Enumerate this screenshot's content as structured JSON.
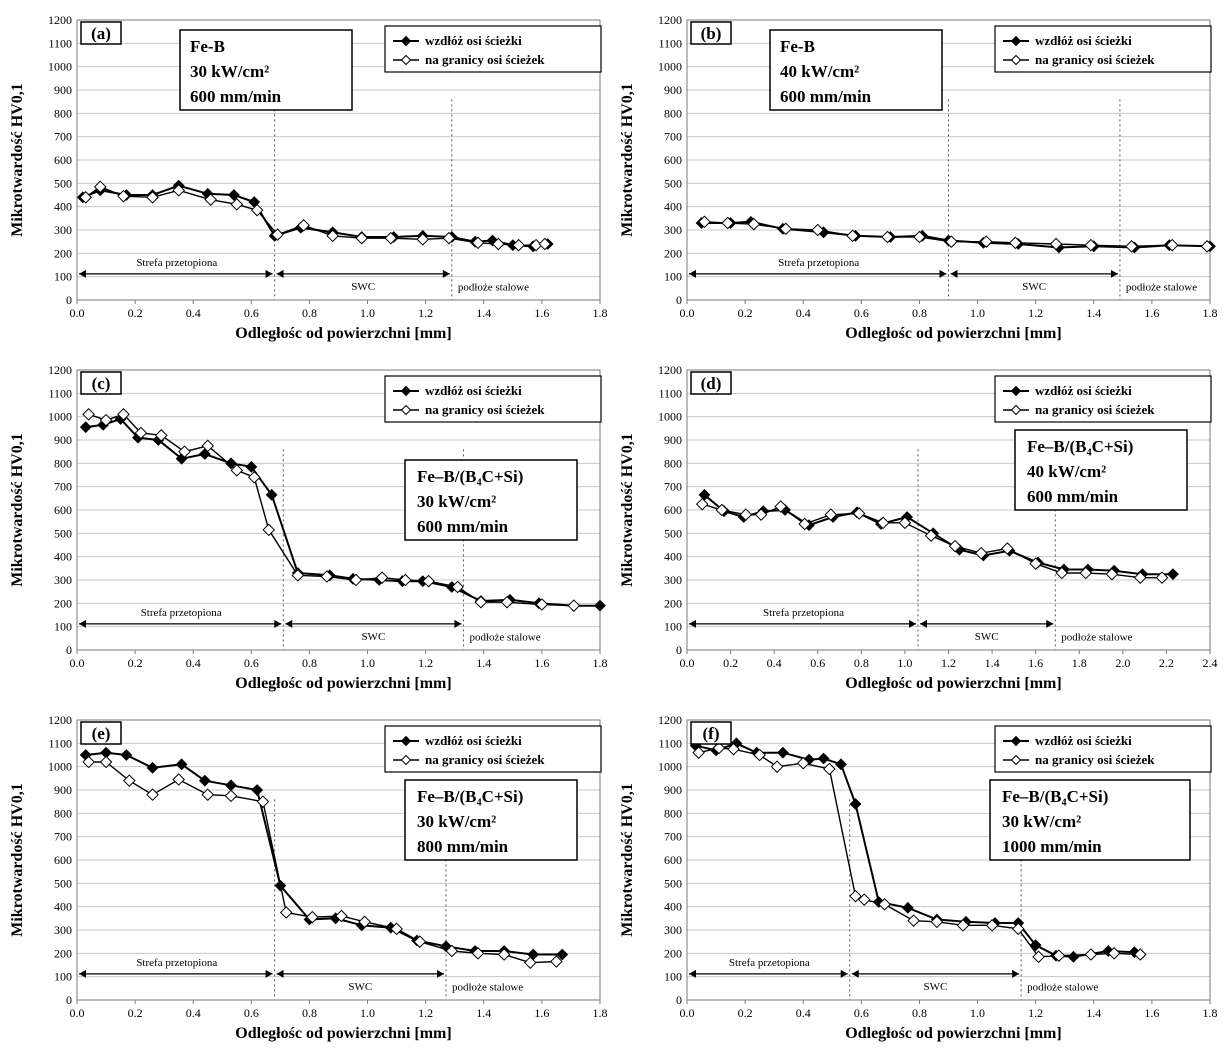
{
  "colors": {
    "line": "#000000",
    "grid": "#c8c8c8",
    "frame": "#7a7a7a",
    "marker_fill_open": "#ffffff",
    "marker_fill_solid": "#000000"
  },
  "legend": {
    "series_a": "wzdłóż osi ścieżki",
    "series_b": "na granicy osi ścieżek"
  },
  "chart_data": [
    {
      "id": "a",
      "type": "line",
      "panel_label": "(a)",
      "xlabel": "Odległośc od powierzchni [mm]",
      "ylabel": "Mikrotwardość HV0,1",
      "xlim": [
        0,
        1.8
      ],
      "xstep": 0.2,
      "xdecimals": 1,
      "ylim": [
        0,
        1200
      ],
      "ystep": 100,
      "grid": "horizontal",
      "legend_position": "top-right",
      "info_lines": [
        "Fe-B",
        "30 kW/cm²",
        "600 mm/min"
      ],
      "zone_boundaries": [
        0.68,
        1.29
      ],
      "zone_labels": [
        "Strefa przetopiona",
        "SWC",
        "podłoże stalowe"
      ],
      "series": [
        {
          "name": "wzdłóż osi ścieżki",
          "marker": "filled",
          "x": [
            0.02,
            0.08,
            0.17,
            0.26,
            0.35,
            0.45,
            0.54,
            0.61,
            0.68,
            0.77,
            0.88,
            0.98,
            1.09,
            1.19,
            1.29,
            1.37,
            1.43,
            1.5,
            1.57,
            1.62
          ],
          "y": [
            440,
            470,
            450,
            450,
            490,
            455,
            450,
            420,
            275,
            310,
            290,
            270,
            270,
            275,
            270,
            250,
            255,
            235,
            230,
            240
          ]
        },
        {
          "name": "na granicy osi ścieżek",
          "marker": "open",
          "x": [
            0.03,
            0.08,
            0.16,
            0.26,
            0.35,
            0.46,
            0.55,
            0.62,
            0.69,
            0.78,
            0.88,
            0.98,
            1.08,
            1.19,
            1.28,
            1.38,
            1.45,
            1.52,
            1.58,
            1.61
          ],
          "y": [
            440,
            485,
            445,
            440,
            470,
            430,
            410,
            385,
            280,
            320,
            275,
            265,
            265,
            260,
            265,
            245,
            240,
            235,
            235,
            240
          ]
        }
      ]
    },
    {
      "id": "b",
      "type": "line",
      "panel_label": "(b)",
      "xlabel": "Odległośc od powierzchni [mm]",
      "ylabel": "Mikrotwardość HV0,1",
      "xlim": [
        0,
        1.8
      ],
      "xstep": 0.2,
      "xdecimals": 1,
      "ylim": [
        0,
        1200
      ],
      "ystep": 100,
      "grid": "horizontal",
      "legend_position": "top-right",
      "info_lines": [
        "Fe-B",
        "40 kW/cm²",
        "600 mm/min"
      ],
      "zone_boundaries": [
        0.9,
        1.49
      ],
      "zone_labels": [
        "Strefa przetopiona",
        "SWC",
        "podłoże stalowe"
      ],
      "series": [
        {
          "name": "wzdłóż osi ścieżki",
          "marker": "filled",
          "x": [
            0.05,
            0.15,
            0.22,
            0.33,
            0.47,
            0.58,
            0.7,
            0.81,
            0.9,
            1.02,
            1.14,
            1.28,
            1.4,
            1.54,
            1.66,
            1.8
          ],
          "y": [
            330,
            330,
            335,
            305,
            290,
            275,
            270,
            275,
            255,
            245,
            240,
            225,
            230,
            225,
            235,
            230
          ]
        },
        {
          "name": "na granicy osi ścieżek",
          "marker": "open",
          "x": [
            0.06,
            0.14,
            0.23,
            0.34,
            0.45,
            0.57,
            0.69,
            0.8,
            0.91,
            1.03,
            1.13,
            1.27,
            1.39,
            1.53,
            1.67,
            1.79
          ],
          "y": [
            335,
            330,
            325,
            305,
            300,
            275,
            270,
            270,
            250,
            250,
            245,
            240,
            235,
            230,
            235,
            230
          ]
        }
      ]
    },
    {
      "id": "c",
      "type": "line",
      "panel_label": "(c)",
      "xlabel": "Odległośc od powierzchni [mm]",
      "ylabel": "Mikrotwardość HV0,1",
      "xlim": [
        0,
        1.8
      ],
      "xstep": 0.2,
      "xdecimals": 1,
      "ylim": [
        0,
        1200
      ],
      "ystep": 100,
      "grid": "horizontal",
      "legend_position": "top-right",
      "info_lines": [
        "Fe–B/(B₄C+Si)",
        "30 kW/cm²",
        "600 mm/min"
      ],
      "zone_boundaries": [
        0.71,
        1.33
      ],
      "zone_labels": [
        "Strefa przetopiona",
        "SWC",
        "podłoże stalowe"
      ],
      "series": [
        {
          "name": "wzdłóż osi ścieżki",
          "marker": "filled",
          "x": [
            0.03,
            0.09,
            0.15,
            0.21,
            0.28,
            0.36,
            0.44,
            0.53,
            0.6,
            0.67,
            0.76,
            0.87,
            0.95,
            1.04,
            1.12,
            1.19,
            1.29,
            1.39,
            1.49,
            1.59,
            1.71,
            1.8
          ],
          "y": [
            955,
            965,
            990,
            910,
            900,
            820,
            840,
            800,
            785,
            665,
            330,
            320,
            305,
            300,
            295,
            295,
            270,
            210,
            215,
            200,
            190,
            190
          ]
        },
        {
          "name": "na granicy osi ścieżek",
          "marker": "open",
          "x": [
            0.04,
            0.1,
            0.16,
            0.22,
            0.29,
            0.37,
            0.45,
            0.55,
            0.61,
            0.66,
            0.76,
            0.86,
            0.96,
            1.05,
            1.13,
            1.21,
            1.31,
            1.39,
            1.48,
            1.6,
            1.71
          ],
          "y": [
            1010,
            985,
            1010,
            930,
            920,
            850,
            875,
            770,
            740,
            515,
            320,
            315,
            300,
            310,
            300,
            295,
            270,
            205,
            205,
            195,
            190
          ]
        }
      ]
    },
    {
      "id": "d",
      "type": "line",
      "panel_label": "(d)",
      "xlabel": "Odległośc od powierzchni [mm]",
      "ylabel": "Mikrotwardość HV0,1",
      "xlim": [
        0,
        2.4
      ],
      "xstep": 0.2,
      "xdecimals": 1,
      "ylim": [
        0,
        1200
      ],
      "ystep": 100,
      "grid": "horizontal",
      "legend_position": "top-right",
      "info_lines": [
        "Fe–B/(B₄C+Si)",
        "40 kW/cm²",
        "600 mm/min"
      ],
      "zone_boundaries": [
        1.06,
        1.69
      ],
      "zone_labels": [
        "Strefa przetopiona",
        "SWC",
        "podłoże stalowe"
      ],
      "series": [
        {
          "name": "wzdłóż osi ścieżki",
          "marker": "filled",
          "x": [
            0.08,
            0.17,
            0.26,
            0.35,
            0.45,
            0.56,
            0.67,
            0.78,
            0.89,
            1.01,
            1.13,
            1.25,
            1.36,
            1.48,
            1.61,
            1.73,
            1.84,
            1.96,
            2.09,
            2.23
          ],
          "y": [
            665,
            595,
            570,
            595,
            600,
            535,
            570,
            590,
            540,
            570,
            500,
            430,
            405,
            425,
            375,
            345,
            345,
            340,
            325,
            325
          ]
        },
        {
          "name": "na granicy osi ścieżek",
          "marker": "open",
          "x": [
            0.07,
            0.16,
            0.27,
            0.34,
            0.43,
            0.54,
            0.66,
            0.79,
            0.9,
            1.0,
            1.12,
            1.23,
            1.35,
            1.47,
            1.6,
            1.72,
            1.83,
            1.95,
            2.08,
            2.18
          ],
          "y": [
            625,
            600,
            580,
            580,
            615,
            540,
            580,
            585,
            545,
            545,
            490,
            445,
            415,
            435,
            370,
            330,
            330,
            325,
            310,
            310
          ]
        }
      ]
    },
    {
      "id": "e",
      "type": "line",
      "panel_label": "(e)",
      "xlabel": "Odległośc od powierzchni [mm]",
      "ylabel": "Mikrotwardość HV0,1",
      "xlim": [
        0,
        1.8
      ],
      "xstep": 0.2,
      "xdecimals": 1,
      "ylim": [
        0,
        1200
      ],
      "ystep": 100,
      "grid": "horizontal",
      "legend_position": "top-right",
      "info_lines": [
        "Fe–B/(B₄C+Si)",
        "30 kW/cm²",
        "800 mm/min"
      ],
      "zone_boundaries": [
        0.68,
        1.27
      ],
      "zone_labels": [
        "Strefa przetopiona",
        "SWC",
        "podłoże stalowe"
      ],
      "series": [
        {
          "name": "wzdłóż osi ścieżki",
          "marker": "filled",
          "x": [
            0.03,
            0.1,
            0.17,
            0.26,
            0.36,
            0.44,
            0.53,
            0.62,
            0.7,
            0.8,
            0.89,
            0.98,
            1.08,
            1.17,
            1.27,
            1.37,
            1.47,
            1.57,
            1.67
          ],
          "y": [
            1050,
            1060,
            1050,
            995,
            1010,
            940,
            920,
            900,
            490,
            345,
            350,
            320,
            310,
            255,
            230,
            210,
            210,
            195,
            195
          ]
        },
        {
          "name": "na granicy osi ścieżek",
          "marker": "open",
          "x": [
            0.04,
            0.1,
            0.18,
            0.26,
            0.35,
            0.45,
            0.53,
            0.64,
            0.72,
            0.81,
            0.91,
            0.99,
            1.1,
            1.18,
            1.29,
            1.38,
            1.47,
            1.56,
            1.65
          ],
          "y": [
            1020,
            1020,
            940,
            880,
            945,
            880,
            875,
            850,
            375,
            355,
            360,
            335,
            305,
            250,
            210,
            200,
            195,
            160,
            165
          ]
        }
      ]
    },
    {
      "id": "f",
      "type": "line",
      "panel_label": "(f)",
      "xlabel": "Odległośc od powierzchni [mm]",
      "ylabel": "Mikrotwardość HV0,1",
      "xlim": [
        0,
        1.8
      ],
      "xstep": 0.2,
      "xdecimals": 1,
      "ylim": [
        0,
        1200
      ],
      "ystep": 100,
      "grid": "horizontal",
      "legend_position": "top-right",
      "info_lines": [
        "Fe–B/(B₄C+Si)",
        "30 kW/cm²",
        "1000 mm/min"
      ],
      "zone_boundaries": [
        0.56,
        1.15
      ],
      "zone_labels": [
        "Strefa przetopiona",
        "SWC",
        "podłoże stalowe"
      ],
      "series": [
        {
          "name": "wzdłóż osi ścieżki",
          "marker": "filled",
          "x": [
            0.03,
            0.1,
            0.17,
            0.24,
            0.33,
            0.42,
            0.47,
            0.53,
            0.58,
            0.66,
            0.76,
            0.86,
            0.96,
            1.06,
            1.14,
            1.2,
            1.27,
            1.33,
            1.45,
            1.54
          ],
          "y": [
            1090,
            1070,
            1100,
            1060,
            1060,
            1030,
            1035,
            1010,
            840,
            420,
            395,
            345,
            335,
            330,
            330,
            235,
            190,
            185,
            210,
            205
          ]
        },
        {
          "name": "na granicy osi ścieżek",
          "marker": "open",
          "x": [
            0.04,
            0.11,
            0.16,
            0.25,
            0.31,
            0.4,
            0.49,
            0.58,
            0.61,
            0.68,
            0.78,
            0.86,
            0.95,
            1.05,
            1.14,
            1.21,
            1.28,
            1.39,
            1.47,
            1.56
          ],
          "y": [
            1060,
            1080,
            1075,
            1050,
            1000,
            1015,
            990,
            445,
            430,
            410,
            340,
            335,
            320,
            320,
            305,
            185,
            190,
            195,
            200,
            195
          ]
        }
      ]
    }
  ]
}
